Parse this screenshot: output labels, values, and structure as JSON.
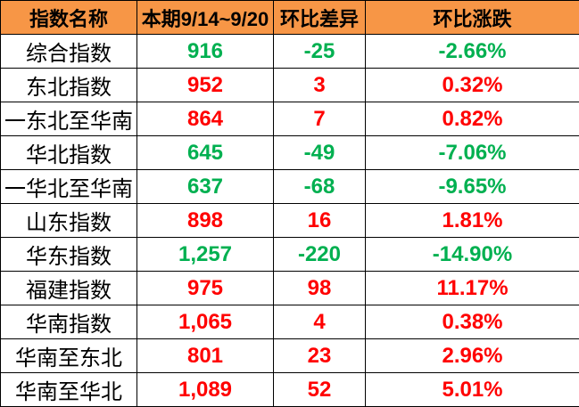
{
  "colors": {
    "header_bg": "#F79646",
    "up": "#FF0000",
    "down": "#00B050"
  },
  "headers": [
    "指数名称",
    "本期9/14~9/20",
    "环比差异",
    "环比涨跌"
  ],
  "rows": [
    {
      "name": "综合指数",
      "value": "916",
      "diff": "-25",
      "pct": "-2.66%",
      "trend": "down"
    },
    {
      "name": "东北指数",
      "value": "952",
      "diff": "3",
      "pct": "0.32%",
      "trend": "up"
    },
    {
      "name": "一东北至华南",
      "value": "864",
      "diff": "7",
      "pct": "0.82%",
      "trend": "up"
    },
    {
      "name": "华北指数",
      "value": "645",
      "diff": "-49",
      "pct": "-7.06%",
      "trend": "down"
    },
    {
      "name": "一华北至华南",
      "value": "637",
      "diff": "-68",
      "pct": "-9.65%",
      "trend": "down"
    },
    {
      "name": "山东指数",
      "value": "898",
      "diff": "16",
      "pct": "1.81%",
      "trend": "up"
    },
    {
      "name": "华东指数",
      "value": "1,257",
      "diff": "-220",
      "pct": "-14.90%",
      "trend": "down"
    },
    {
      "name": "福建指数",
      "value": "975",
      "diff": "98",
      "pct": "11.17%",
      "trend": "up"
    },
    {
      "name": "华南指数",
      "value": "1,065",
      "diff": "4",
      "pct": "0.38%",
      "trend": "up"
    },
    {
      "name": "华南至东北",
      "value": "801",
      "diff": "23",
      "pct": "2.96%",
      "trend": "up"
    },
    {
      "name": "华南至华北",
      "value": "1,089",
      "diff": "52",
      "pct": "5.01%",
      "trend": "up"
    }
  ]
}
